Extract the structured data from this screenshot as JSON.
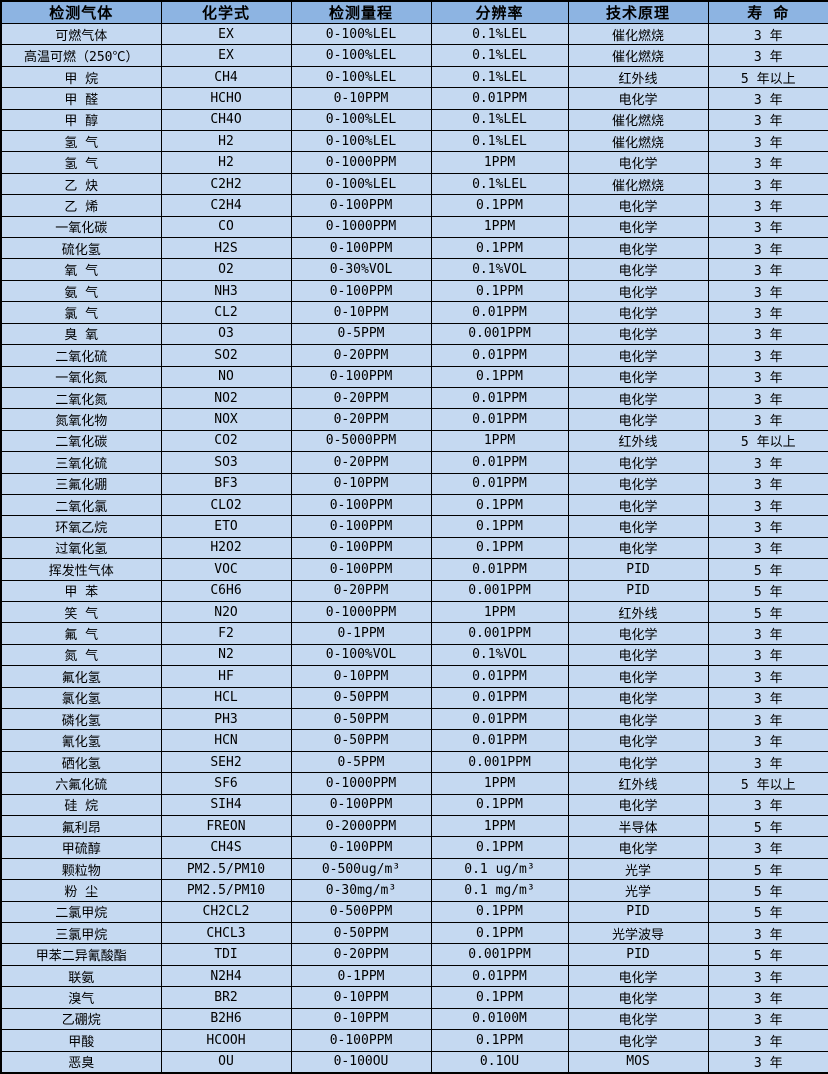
{
  "colors": {
    "header_bg": "#8DB4E2",
    "row_bg": "#C5D9F1",
    "border": "#000000",
    "text": "#000000"
  },
  "table": {
    "headers": [
      "检测气体",
      "化学式",
      "检测量程",
      "分辨率",
      "技术原理",
      "寿 命"
    ],
    "rows": [
      [
        "可燃气体",
        "EX",
        "0-100%LEL",
        "0.1%LEL",
        "催化燃烧",
        "3 年"
      ],
      [
        "高温可燃（250℃）",
        "EX",
        "0-100%LEL",
        "0.1%LEL",
        "催化燃烧",
        "3 年"
      ],
      [
        "甲 烷",
        "CH4",
        "0-100%LEL",
        "0.1%LEL",
        "红外线",
        "5 年以上"
      ],
      [
        "甲 醛",
        "HCHO",
        "0-10PPM",
        "0.01PPM",
        "电化学",
        "3 年"
      ],
      [
        "甲 醇",
        "CH4O",
        "0-100%LEL",
        "0.1%LEL",
        "催化燃烧",
        "3 年"
      ],
      [
        "氢 气",
        "H2",
        "0-100%LEL",
        "0.1%LEL",
        "催化燃烧",
        "3 年"
      ],
      [
        "氢 气",
        "H2",
        "0-1000PPM",
        "1PPM",
        "电化学",
        "3 年"
      ],
      [
        "乙 炔",
        "C2H2",
        "0-100%LEL",
        "0.1%LEL",
        "催化燃烧",
        "3 年"
      ],
      [
        "乙 烯",
        "C2H4",
        "0-100PPM",
        "0.1PPM",
        "电化学",
        "3 年"
      ],
      [
        "一氧化碳",
        "CO",
        "0-1000PPM",
        "1PPM",
        "电化学",
        "3 年"
      ],
      [
        "硫化氢",
        "H2S",
        "0-100PPM",
        "0.1PPM",
        "电化学",
        "3 年"
      ],
      [
        "氧 气",
        "O2",
        "0-30%VOL",
        "0.1%VOL",
        "电化学",
        "3 年"
      ],
      [
        "氨 气",
        "NH3",
        "0-100PPM",
        "0.1PPM",
        "电化学",
        "3 年"
      ],
      [
        "氯 气",
        "CL2",
        "0-10PPM",
        "0.01PPM",
        "电化学",
        "3 年"
      ],
      [
        "臭 氧",
        "O3",
        "0-5PPM",
        "0.001PPM",
        "电化学",
        "3 年"
      ],
      [
        "二氧化硫",
        "SO2",
        "0-20PPM",
        "0.01PPM",
        "电化学",
        "3 年"
      ],
      [
        "一氧化氮",
        "NO",
        "0-100PPM",
        "0.1PPM",
        "电化学",
        "3 年"
      ],
      [
        "二氧化氮",
        "NO2",
        "0-20PPM",
        "0.01PPM",
        "电化学",
        "3 年"
      ],
      [
        "氮氧化物",
        "NOX",
        "0-20PPM",
        "0.01PPM",
        "电化学",
        "3 年"
      ],
      [
        "二氧化碳",
        "CO2",
        "0-5000PPM",
        "1PPM",
        "红外线",
        "5 年以上"
      ],
      [
        "三氧化硫",
        "SO3",
        "0-20PPM",
        "0.01PPM",
        "电化学",
        "3 年"
      ],
      [
        "三氟化硼",
        "BF3",
        "0-10PPM",
        "0.01PPM",
        "电化学",
        "3 年"
      ],
      [
        "二氧化氯",
        "CLO2",
        "0-100PPM",
        "0.1PPM",
        "电化学",
        "3 年"
      ],
      [
        "环氧乙烷",
        "ETO",
        "0-100PPM",
        "0.1PPM",
        "电化学",
        "3 年"
      ],
      [
        "过氧化氢",
        "H2O2",
        "0-100PPM",
        "0.1PPM",
        "电化学",
        "3 年"
      ],
      [
        "挥发性气体",
        "VOC",
        "0-100PPM",
        "0.01PPM",
        "PID",
        "5 年"
      ],
      [
        "甲 苯",
        "C6H6",
        "0-20PPM",
        "0.001PPM",
        "PID",
        "5 年"
      ],
      [
        "笑 气",
        "N2O",
        "0-1000PPM",
        "1PPM",
        "红外线",
        "5 年"
      ],
      [
        "氟 气",
        "F2",
        "0-1PPM",
        "0.001PPM",
        "电化学",
        "3 年"
      ],
      [
        "氮 气",
        "N2",
        "0-100%VOL",
        "0.1%VOL",
        "电化学",
        "3 年"
      ],
      [
        "氟化氢",
        "HF",
        "0-10PPM",
        "0.01PPM",
        "电化学",
        "3 年"
      ],
      [
        "氯化氢",
        "HCL",
        "0-50PPM",
        "0.01PPM",
        "电化学",
        "3 年"
      ],
      [
        "磷化氢",
        "PH3",
        "0-50PPM",
        "0.01PPM",
        "电化学",
        "3 年"
      ],
      [
        "氰化氢",
        "HCN",
        "0-50PPM",
        "0.01PPM",
        "电化学",
        "3 年"
      ],
      [
        "硒化氢",
        "SEH2",
        "0-5PPM",
        "0.001PPM",
        "电化学",
        "3 年"
      ],
      [
        "六氟化硫",
        "SF6",
        "0-1000PPM",
        "1PPM",
        "红外线",
        "5 年以上"
      ],
      [
        "硅 烷",
        "SIH4",
        "0-100PPM",
        "0.1PPM",
        "电化学",
        "3 年"
      ],
      [
        "氟利昂",
        "FREON",
        "0-2000PPM",
        "1PPM",
        "半导体",
        "5 年"
      ],
      [
        "甲硫醇",
        "CH4S",
        "0-100PPM",
        "0.1PPM",
        "电化学",
        "3 年"
      ],
      [
        "颗粒物",
        "PM2.5/PM10",
        "0-500ug/m³",
        "0.1 ug/m³",
        "光学",
        "5 年"
      ],
      [
        "粉 尘",
        "PM2.5/PM10",
        "0-30mg/m³",
        "0.1 mg/m³",
        "光学",
        "5 年"
      ],
      [
        "二氯甲烷",
        "CH2CL2",
        "0-500PPM",
        "0.1PPM",
        "PID",
        "5 年"
      ],
      [
        "三氯甲烷",
        "CHCL3",
        "0-50PPM",
        "0.1PPM",
        "光学波导",
        "3 年"
      ],
      [
        "甲苯二异氰酸酯",
        "TDI",
        "0-20PPM",
        "0.001PPM",
        "PID",
        "5 年"
      ],
      [
        "联氨",
        "N2H4",
        "0-1PPM",
        "0.01PPM",
        "电化学",
        "3 年"
      ],
      [
        "溴气",
        "BR2",
        "0-10PPM",
        "0.1PPM",
        "电化学",
        "3 年"
      ],
      [
        "乙硼烷",
        "B2H6",
        "0-10PPM",
        "0.0100M",
        "电化学",
        "3 年"
      ],
      [
        "甲酸",
        "HCOOH",
        "0-100PPM",
        "0.1PPM",
        "电化学",
        "3 年"
      ],
      [
        "恶臭",
        "OU",
        "0-100OU",
        "0.1OU",
        "MOS",
        "3 年"
      ]
    ]
  }
}
